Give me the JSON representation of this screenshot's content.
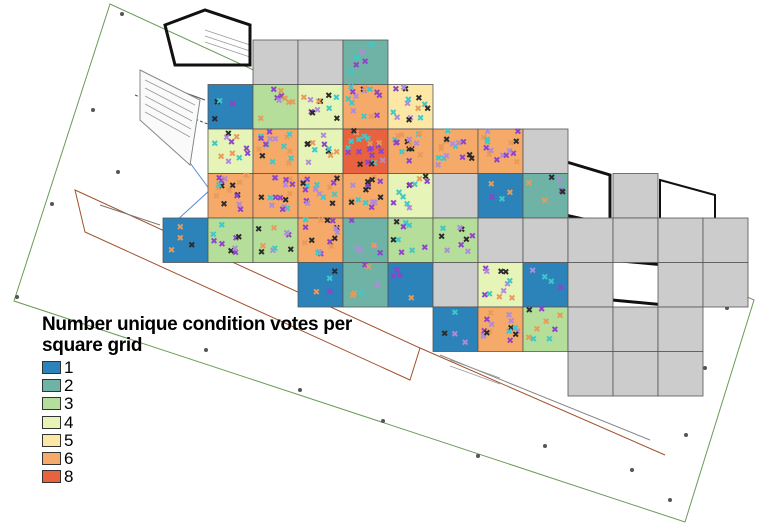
{
  "legend": {
    "title": "Number unique condition votes per square grid",
    "items": [
      {
        "label": "1",
        "color": "#2b83ba"
      },
      {
        "label": "2",
        "color": "#6fb3a6"
      },
      {
        "label": "3",
        "color": "#b4de9a"
      },
      {
        "label": "4",
        "color": "#e6f4b7"
      },
      {
        "label": "5",
        "color": "#fde7a5"
      },
      {
        "label": "6",
        "color": "#f6aa6a"
      },
      {
        "label": "8",
        "color": "#e8623f"
      }
    ]
  },
  "grid": {
    "no_data_color": "#cccccc",
    "cells": [
      {
        "c": 2,
        "r": 0,
        "v": 0
      },
      {
        "c": 3,
        "r": 0,
        "v": 0
      },
      {
        "c": 4,
        "r": 0,
        "v": 2
      },
      {
        "c": 1,
        "r": 1,
        "v": 1
      },
      {
        "c": 2,
        "r": 1,
        "v": 3
      },
      {
        "c": 3,
        "r": 1,
        "v": 4
      },
      {
        "c": 4,
        "r": 1,
        "v": 6
      },
      {
        "c": 5,
        "r": 1,
        "v": 5
      },
      {
        "c": 1,
        "r": 2,
        "v": 4
      },
      {
        "c": 2,
        "r": 2,
        "v": 6
      },
      {
        "c": 3,
        "r": 2,
        "v": 4
      },
      {
        "c": 4,
        "r": 2,
        "v": 8
      },
      {
        "c": 5,
        "r": 2,
        "v": 6
      },
      {
        "c": 6,
        "r": 2,
        "v": 6
      },
      {
        "c": 7,
        "r": 2,
        "v": 6
      },
      {
        "c": 8,
        "r": 2,
        "v": 0
      },
      {
        "c": 1,
        "r": 3,
        "v": 6
      },
      {
        "c": 2,
        "r": 3,
        "v": 6
      },
      {
        "c": 3,
        "r": 3,
        "v": 6
      },
      {
        "c": 4,
        "r": 3,
        "v": 6
      },
      {
        "c": 5,
        "r": 3,
        "v": 4
      },
      {
        "c": 6,
        "r": 3,
        "v": 0
      },
      {
        "c": 7,
        "r": 3,
        "v": 1
      },
      {
        "c": 8,
        "r": 3,
        "v": 2
      },
      {
        "c": 10,
        "r": 3,
        "v": 0
      },
      {
        "c": 0,
        "r": 4,
        "v": 1
      },
      {
        "c": 1,
        "r": 4,
        "v": 3
      },
      {
        "c": 2,
        "r": 4,
        "v": 3
      },
      {
        "c": 3,
        "r": 4,
        "v": 6
      },
      {
        "c": 4,
        "r": 4,
        "v": 2
      },
      {
        "c": 5,
        "r": 4,
        "v": 3
      },
      {
        "c": 6,
        "r": 4,
        "v": 3
      },
      {
        "c": 7,
        "r": 4,
        "v": 0
      },
      {
        "c": 8,
        "r": 4,
        "v": 0
      },
      {
        "c": 9,
        "r": 4,
        "v": 0
      },
      {
        "c": 10,
        "r": 4,
        "v": 0
      },
      {
        "c": 11,
        "r": 4,
        "v": 0
      },
      {
        "c": 12,
        "r": 4,
        "v": 0
      },
      {
        "c": 3,
        "r": 5,
        "v": 1
      },
      {
        "c": 4,
        "r": 5,
        "v": 2
      },
      {
        "c": 5,
        "r": 5,
        "v": 1
      },
      {
        "c": 6,
        "r": 5,
        "v": 0
      },
      {
        "c": 7,
        "r": 5,
        "v": 4
      },
      {
        "c": 8,
        "r": 5,
        "v": 1
      },
      {
        "c": 9,
        "r": 5,
        "v": 0
      },
      {
        "c": 11,
        "r": 5,
        "v": 0
      },
      {
        "c": 12,
        "r": 5,
        "v": 0
      },
      {
        "c": 6,
        "r": 6,
        "v": 1
      },
      {
        "c": 7,
        "r": 6,
        "v": 6
      },
      {
        "c": 8,
        "r": 6,
        "v": 3
      },
      {
        "c": 9,
        "r": 6,
        "v": 0
      },
      {
        "c": 10,
        "r": 6,
        "v": 0
      },
      {
        "c": 11,
        "r": 6,
        "v": 0
      },
      {
        "c": 9,
        "r": 7,
        "v": 0
      },
      {
        "c": 10,
        "r": 7,
        "v": 0
      },
      {
        "c": 11,
        "r": 7,
        "v": 0
      }
    ]
  },
  "markers": {
    "colors": [
      "#8e44c9",
      "#e89a5a",
      "#3ec8c8",
      "#b08bd8",
      "#2b2b2b"
    ]
  }
}
